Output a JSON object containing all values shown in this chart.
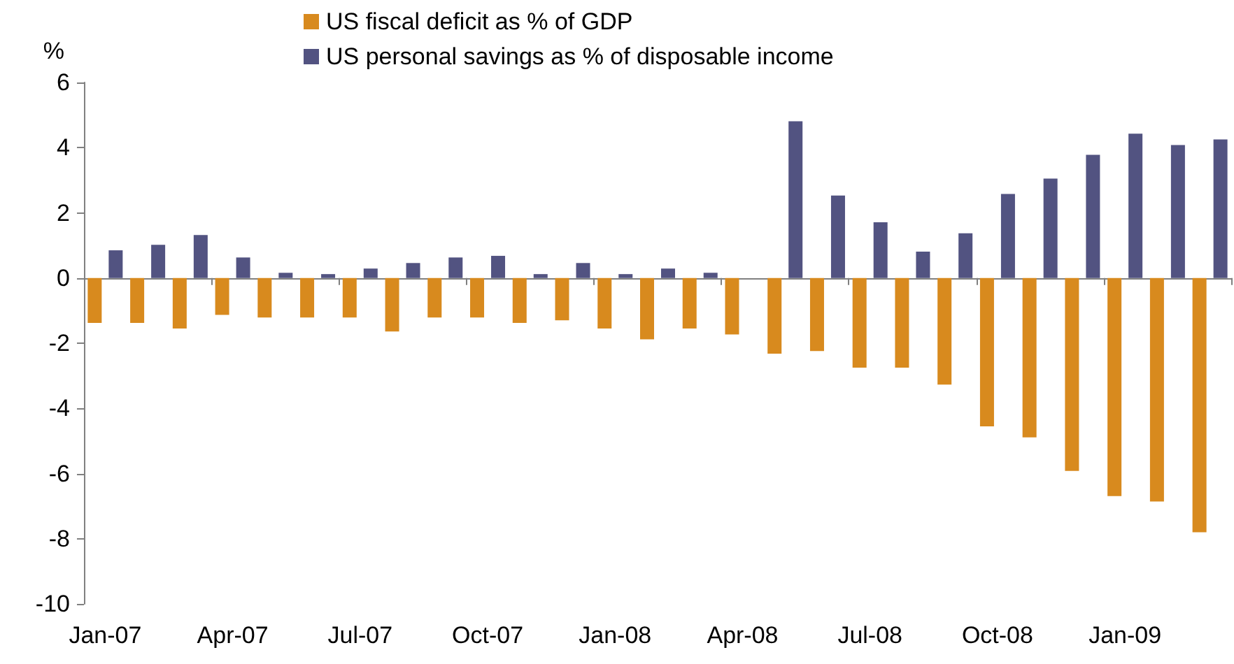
{
  "chart_data": {
    "type": "bar",
    "ylabel": "%",
    "categories": [
      "Jan-07",
      null,
      null,
      "Apr-07",
      null,
      null,
      "Jul-07",
      null,
      null,
      "Oct-07",
      null,
      null,
      "Jan-08",
      null,
      null,
      "Apr-08",
      null,
      null,
      "Jul-08",
      null,
      null,
      "Oct-08",
      null,
      null,
      "Jan-09",
      null,
      null
    ],
    "series": [
      {
        "name": "US fiscal deficit as % of GDP",
        "color": "#d88a1e",
        "values": [
          -1.38,
          -1.38,
          -1.55,
          -1.13,
          -1.21,
          -1.21,
          -1.21,
          -1.64,
          -1.21,
          -1.21,
          -1.38,
          -1.3,
          -1.55,
          -1.88,
          -1.55,
          -1.73,
          -2.32,
          -2.24,
          -2.75,
          -2.75,
          -3.27,
          -4.55,
          -4.89,
          -5.92,
          -6.69,
          -6.86,
          -7.8
        ]
      },
      {
        "name": "US personal savings as % of disposable income",
        "color": "#525381",
        "values": [
          0.85,
          1.02,
          1.32,
          0.63,
          0.16,
          0.12,
          0.29,
          0.46,
          0.63,
          0.68,
          0.12,
          0.46,
          0.12,
          0.29,
          0.16,
          0,
          4.81,
          2.53,
          1.71,
          0.81,
          1.37,
          2.58,
          3.05,
          3.78,
          4.43,
          4.08,
          4.25
        ]
      }
    ],
    "ylim": [
      -10,
      6
    ],
    "yticks": [
      -10,
      -8,
      -6,
      -4,
      -2,
      0,
      2,
      4,
      6
    ],
    "legend": "top"
  }
}
